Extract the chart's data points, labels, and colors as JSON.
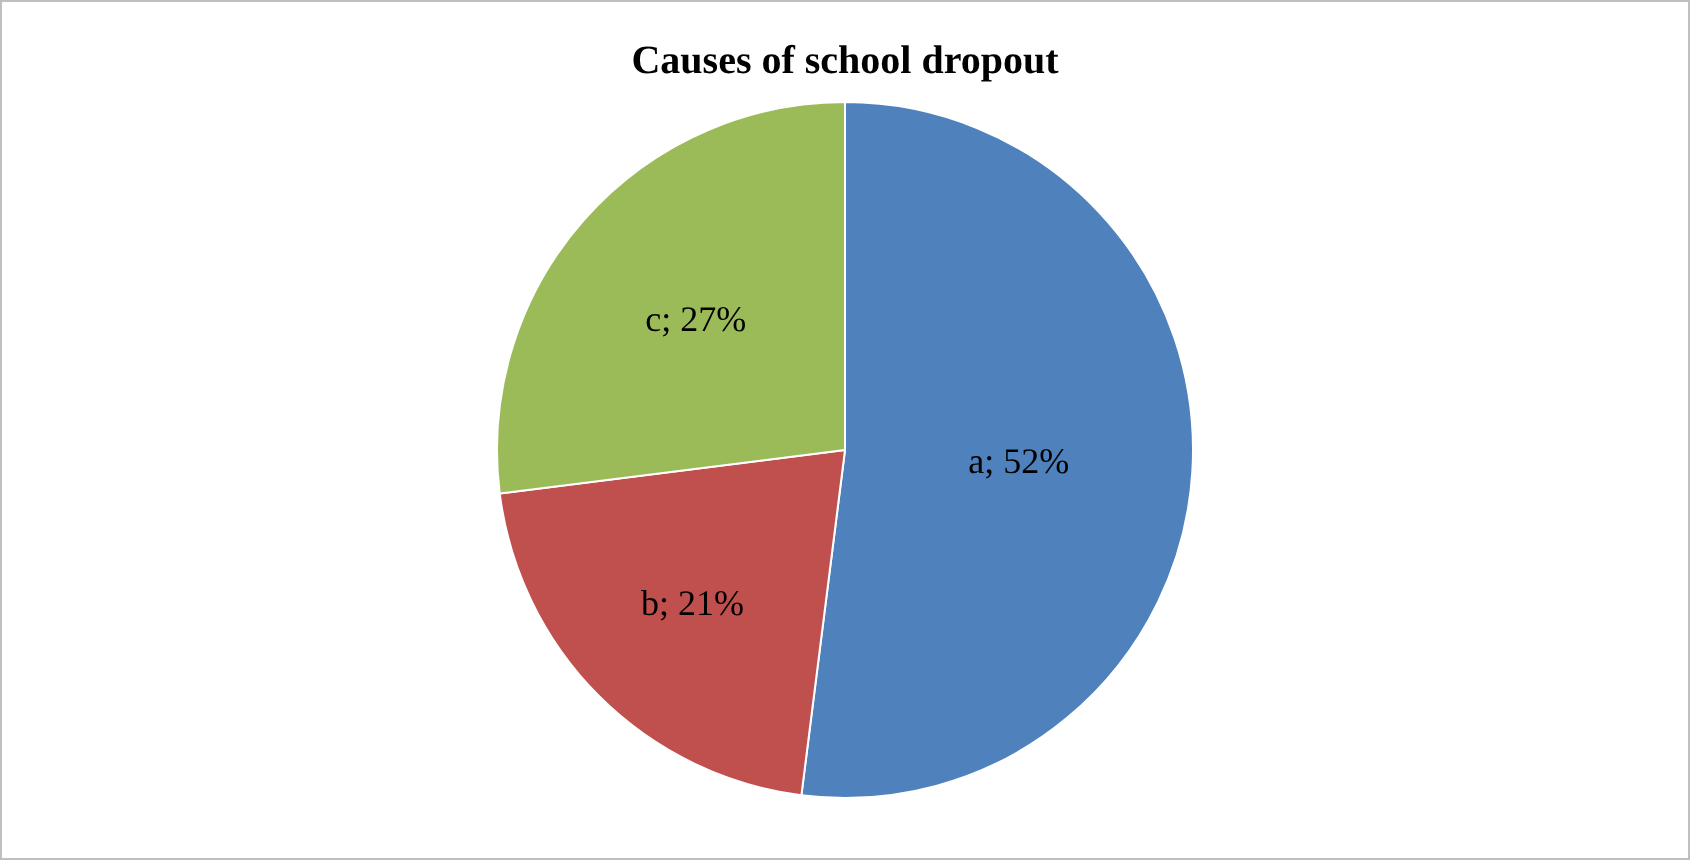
{
  "chart_data": {
    "type": "pie",
    "title": "Causes of school dropout",
    "categories": [
      "a; 52%",
      "b; 21%",
      "c; 27%"
    ],
    "values": [
      52,
      21,
      27
    ],
    "colors": [
      "#4f81bd",
      "#c0504d",
      "#9bbb59"
    ],
    "legend": false
  }
}
